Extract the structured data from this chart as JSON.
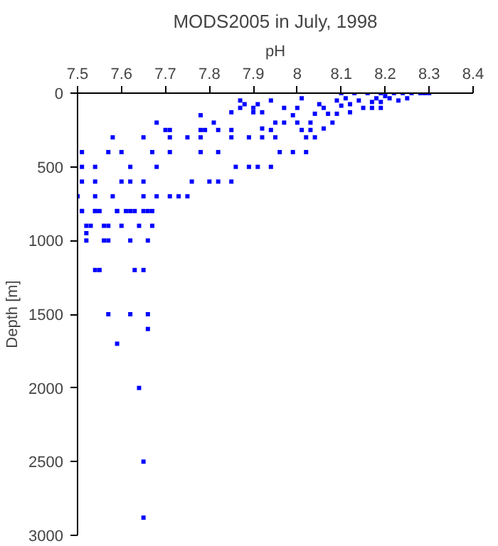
{
  "chart_data": {
    "type": "scatter",
    "title": "MODS2005 in July, 1998",
    "xlabel": "pH",
    "ylabel": "Depth [m]",
    "xlim": [
      7.5,
      8.4
    ],
    "ylim": [
      3000,
      0
    ],
    "xticks": [
      7.5,
      7.6,
      7.7,
      7.8,
      7.9,
      {
        "value": 8.0,
        "label": "8"
      },
      8.1,
      8.2,
      8.3,
      8.4
    ],
    "yticks": [
      0,
      500,
      1000,
      1500,
      2000,
      2500,
      3000
    ],
    "grid": false,
    "marker": "square",
    "series": [
      {
        "color": "#0000ff",
        "x": [
          7.51,
          7.51,
          7.54,
          7.51,
          7.54,
          7.5,
          7.54,
          7.51,
          7.54,
          7.57,
          7.58,
          7.6,
          7.62,
          7.6,
          7.58,
          7.59,
          7.62,
          7.62,
          7.65,
          7.65,
          7.65,
          7.66,
          7.67,
          7.68,
          7.68,
          7.68,
          7.7,
          7.71,
          7.71,
          7.71,
          7.71,
          7.73,
          7.75,
          7.75,
          7.76,
          7.78,
          7.78,
          7.78,
          7.78,
          7.79,
          7.8,
          7.82,
          7.81,
          7.82,
          7.82,
          7.85,
          7.85,
          7.85,
          7.85,
          7.86,
          7.87,
          7.87,
          7.88,
          7.89,
          7.89,
          7.9,
          7.9,
          7.91,
          7.91,
          7.92,
          7.92,
          7.92,
          7.94,
          7.94,
          7.94,
          7.95,
          7.95,
          7.96,
          7.97,
          7.97,
          7.99,
          7.99,
          8.0,
          8.0,
          8.01,
          8.01,
          8.02,
          8.02,
          8.03,
          8.03,
          8.04,
          8.04,
          8.05,
          8.06,
          8.06,
          8.07,
          8.08,
          8.09,
          8.09,
          8.1,
          8.1,
          8.11,
          8.12,
          8.12,
          8.13,
          8.14,
          8.15,
          8.16,
          8.17,
          8.18,
          8.19,
          8.19,
          8.2,
          8.21,
          8.22,
          8.23,
          8.24,
          8.25,
          8.26,
          8.28,
          8.29,
          8.3,
          8.17,
          8.19,
          7.51,
          7.54,
          7.55,
          7.59,
          7.61,
          7.63,
          7.65,
          7.67,
          7.52,
          7.53,
          7.56,
          7.57,
          7.6,
          7.64,
          7.67,
          7.52,
          7.52,
          7.56,
          7.57,
          7.62,
          7.66,
          7.54,
          7.55,
          7.63,
          7.65,
          7.57,
          7.62,
          7.66,
          7.66,
          7.59,
          7.64,
          7.65,
          7.65
        ],
        "values": [
          400,
          500,
          500,
          600,
          600,
          700,
          700,
          800,
          800,
          400,
          300,
          400,
          500,
          600,
          700,
          800,
          800,
          600,
          300,
          600,
          700,
          800,
          400,
          500,
          700,
          200,
          250,
          250,
          300,
          400,
          700,
          700,
          700,
          300,
          600,
          150,
          250,
          300,
          400,
          250,
          600,
          600,
          200,
          250,
          400,
          130,
          250,
          300,
          600,
          500,
          100,
          50,
          75,
          300,
          500,
          130,
          100,
          500,
          75,
          130,
          240,
          300,
          500,
          50,
          250,
          300,
          200,
          400,
          100,
          200,
          400,
          150,
          100,
          200,
          250,
          35,
          400,
          300,
          250,
          200,
          140,
          300,
          75,
          100,
          240,
          140,
          200,
          50,
          140,
          85,
          0,
          35,
          75,
          130,
          0,
          50,
          100,
          0,
          60,
          35,
          0,
          60,
          20,
          35,
          0,
          50,
          0,
          35,
          0,
          0,
          0,
          0,
          100,
          100,
          800,
          800,
          800,
          800,
          800,
          800,
          800,
          800,
          900,
          900,
          900,
          900,
          900,
          900,
          900,
          950,
          1000,
          1000,
          1000,
          1000,
          1000,
          1200,
          1200,
          1200,
          1200,
          1500,
          1500,
          1500,
          1600,
          1700,
          2000,
          2500,
          2880
        ]
      }
    ]
  }
}
